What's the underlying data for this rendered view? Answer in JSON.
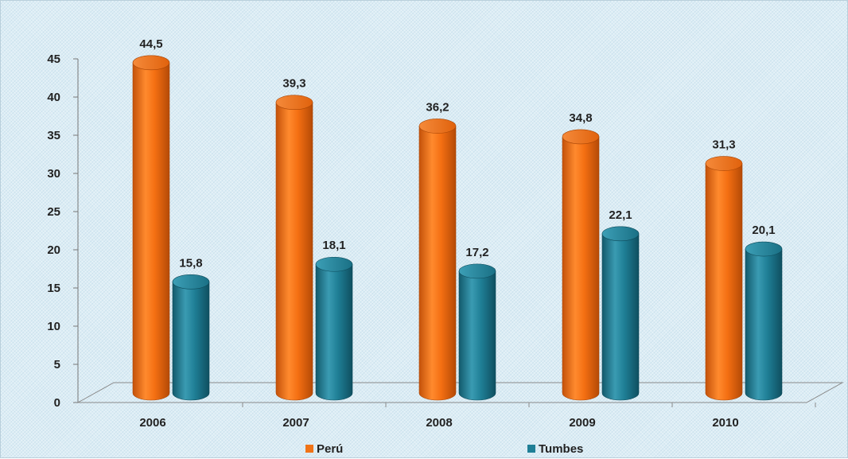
{
  "chart_data": {
    "type": "bar",
    "categories": [
      "2006",
      "2007",
      "2008",
      "2009",
      "2010"
    ],
    "series": [
      {
        "name": "Perú",
        "values": [
          44.5,
          39.3,
          36.2,
          34.8,
          31.3
        ],
        "color": "#f07317",
        "labels": [
          "44,5",
          "39,3",
          "36,2",
          "34,8",
          "31,3"
        ]
      },
      {
        "name": "Tumbes",
        "values": [
          15.8,
          18.1,
          17.2,
          22.1,
          20.1
        ],
        "color": "#1f7f96",
        "labels": [
          "15,8",
          "18,1",
          "17,2",
          "22,1",
          "20,1"
        ]
      }
    ],
    "ylim": [
      0,
      45
    ],
    "yticks": [
      "0",
      "5",
      "10",
      "15",
      "20",
      "25",
      "30",
      "35",
      "40",
      "45"
    ],
    "legend_position": "bottom",
    "style": "3d-cylinder",
    "grid": false
  }
}
